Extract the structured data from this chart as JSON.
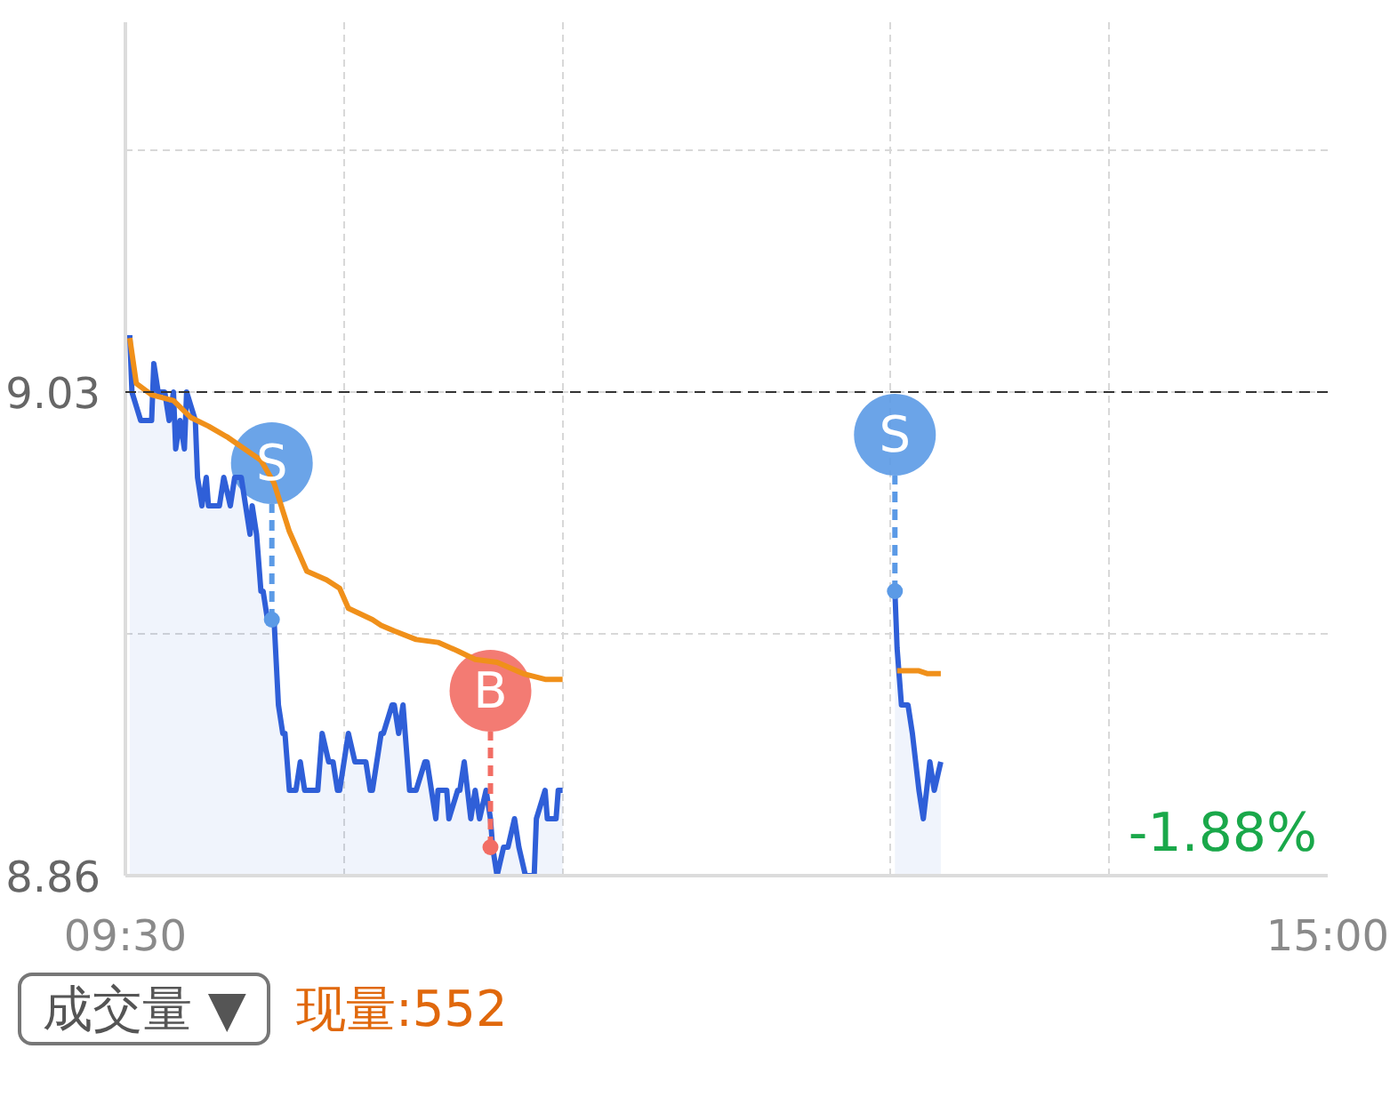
{
  "chart_data": {
    "type": "line",
    "xlim": [
      9.5,
      15
    ],
    "ylim": [
      8.86,
      9.16
    ],
    "xticks": [
      {
        "value": 9.5,
        "label": "09:30"
      },
      {
        "value": 10.5,
        "label": null
      },
      {
        "value": 11.5,
        "label": null
      },
      {
        "value": 13,
        "label": null
      },
      {
        "value": 14,
        "label": null
      },
      {
        "value": 15,
        "label": "15:00"
      }
    ],
    "yticks": [
      8.86,
      {
        "value": 8.945,
        "label": null
      },
      9.03,
      {
        "value": 9.115,
        "label": null
      }
    ],
    "grid": true,
    "ref_lines": [
      {
        "axis": "y",
        "value": 9.03,
        "color": "#333333",
        "line_style": "dashed"
      }
    ],
    "series": [
      {
        "type": "area",
        "color": "#2f5fd8",
        "x": [
          9.52,
          9.53,
          9.57,
          9.62,
          9.63,
          9.65,
          9.68,
          9.7,
          9.72,
          9.73,
          9.75,
          9.77,
          9.78,
          9.82,
          9.83,
          9.85,
          9.87,
          9.88,
          9.93,
          9.95,
          9.98,
          10.0,
          10.03,
          10.05,
          10.07,
          10.08,
          10.1,
          10.12,
          10.13,
          10.15,
          10.18,
          10.2,
          10.22,
          10.23,
          10.25,
          10.28,
          10.3,
          10.32,
          10.38,
          10.4,
          10.43,
          10.45,
          10.47,
          10.48,
          10.52,
          10.55,
          10.58,
          10.6,
          10.62,
          10.63,
          10.67,
          10.68,
          10.72,
          10.73,
          10.75,
          10.77,
          10.8,
          10.83,
          10.87,
          10.88,
          10.92,
          10.93,
          10.97,
          10.98,
          11.02,
          11.03,
          11.05,
          11.08,
          11.1,
          11.12,
          11.15,
          11.17,
          11.18,
          11.2,
          11.23,
          11.25,
          11.28,
          11.3,
          11.33,
          11.37,
          11.38,
          11.42,
          11.43,
          11.47,
          11.48,
          11.5,
          12.25,
          13.02,
          13.03,
          13.05,
          13.07,
          13.08,
          13.1,
          13.13,
          13.15,
          13.18,
          13.2,
          13.23
        ],
        "values": [
          9.05,
          9.03,
          9.02,
          9.02,
          9.04,
          9.03,
          9.03,
          9.02,
          9.03,
          9.01,
          9.02,
          9.01,
          9.03,
          9.02,
          9.0,
          8.99,
          9.0,
          8.99,
          8.99,
          9.0,
          8.99,
          9.0,
          9.0,
          8.99,
          8.98,
          8.99,
          8.98,
          8.96,
          8.96,
          8.95,
          8.95,
          8.92,
          8.91,
          8.91,
          8.89,
          8.89,
          8.9,
          8.89,
          8.89,
          8.91,
          8.9,
          8.9,
          8.89,
          8.89,
          8.91,
          8.9,
          8.9,
          8.9,
          8.89,
          8.89,
          8.91,
          8.91,
          8.92,
          8.92,
          8.91,
          8.92,
          8.89,
          8.89,
          8.9,
          8.9,
          8.88,
          8.89,
          8.89,
          8.88,
          8.89,
          8.89,
          8.9,
          8.88,
          8.89,
          8.88,
          8.89,
          8.88,
          8.87,
          8.86,
          8.87,
          8.87,
          8.88,
          8.87,
          8.86,
          8.86,
          8.88,
          8.89,
          8.88,
          8.88,
          8.89,
          8.89,
          null,
          8.96,
          8.94,
          8.92,
          8.92,
          8.92,
          8.91,
          8.89,
          8.88,
          8.9,
          8.89,
          8.9
        ]
      },
      {
        "color": "#f0901a",
        "x": [
          9.52,
          9.55,
          9.62,
          9.72,
          9.8,
          9.88,
          9.97,
          10.12,
          10.18,
          10.25,
          10.33,
          10.42,
          10.48,
          10.52,
          10.63,
          10.67,
          10.73,
          10.83,
          10.93,
          11.02,
          11.1,
          11.2,
          11.32,
          11.42,
          11.48,
          11.5,
          12.25,
          13.03,
          13.13,
          13.17,
          13.23
        ],
        "values": [
          9.049,
          9.033,
          9.029,
          9.027,
          9.021,
          9.018,
          9.014,
          9.006,
          8.998,
          8.981,
          8.967,
          8.964,
          8.961,
          8.954,
          8.95,
          8.948,
          8.946,
          8.943,
          8.942,
          8.939,
          8.936,
          8.935,
          8.931,
          8.929,
          8.929,
          8.929,
          null,
          8.932,
          8.932,
          8.931,
          8.931
        ]
      },
      {
        "type": "scatter",
        "color": "#5b9ae6",
        "marker": "circle",
        "x": [
          10.17,
          13.02
        ],
        "values": [
          8.95,
          8.96
        ]
      },
      {
        "type": "scatter",
        "color": "#f26d64",
        "marker": "circle",
        "x": [
          11.17
        ],
        "values": [
          8.87
        ]
      }
    ],
    "annotations": [
      "-1.88%",
      "成交量 ▼",
      "现量:552",
      {
        "text": "S",
        "x": 10.17,
        "y": 8.95
      },
      {
        "text": "S",
        "x": 13.02,
        "y": 8.96
      },
      {
        "text": "B",
        "x": 11.17,
        "y": 8.87
      }
    ]
  }
}
